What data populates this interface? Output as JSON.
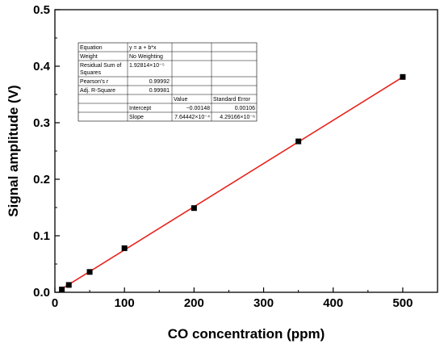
{
  "chart_data": {
    "type": "scatter",
    "xlabel": "CO concentration (ppm)",
    "ylabel": "Signal amplitude (V)",
    "xlim": [
      0,
      550
    ],
    "ylim": [
      0,
      0.5
    ],
    "x_ticks": [
      0,
      100,
      200,
      300,
      400,
      500
    ],
    "x_tick_labels": [
      "0",
      "100",
      "200",
      "300",
      "400",
      "500"
    ],
    "y_ticks": [
      0,
      0.1,
      0.2,
      0.3,
      0.4,
      0.5
    ],
    "y_tick_labels": [
      "0.0",
      "0.1",
      "0.2",
      "0.3",
      "0.4",
      "0.5"
    ],
    "grid": false,
    "series": [
      {
        "marker": "square",
        "color": "#000000",
        "x": [
          10,
          20,
          50,
          100,
          200,
          350,
          500
        ],
        "y": [
          0.005,
          0.013,
          0.036,
          0.078,
          0.149,
          0.267,
          0.381
        ]
      }
    ],
    "fit_line": {
      "color": "#e8231c",
      "intercept": -0.00148,
      "slope": 0.000764442,
      "x_range": [
        10,
        500
      ]
    }
  },
  "fit_table": {
    "rows": [
      [
        "Equation",
        "y = a + b*x",
        "",
        ""
      ],
      [
        "Weight",
        "No Weighting",
        "",
        ""
      ],
      [
        "Residual Sum of Squares",
        "1.92814×10⁻⁵",
        "",
        ""
      ],
      [
        "Pearson's r",
        "0.99992",
        "",
        ""
      ],
      [
        "Adj. R-Square",
        "0.99981",
        "",
        ""
      ],
      [
        "",
        "",
        "Value",
        "Standard Error"
      ],
      [
        "",
        "Intercept",
        "−0.00148",
        "0.00106"
      ],
      [
        "",
        "Slope",
        "7.64442×10⁻⁴",
        "4.29166×10⁻⁶"
      ]
    ]
  }
}
